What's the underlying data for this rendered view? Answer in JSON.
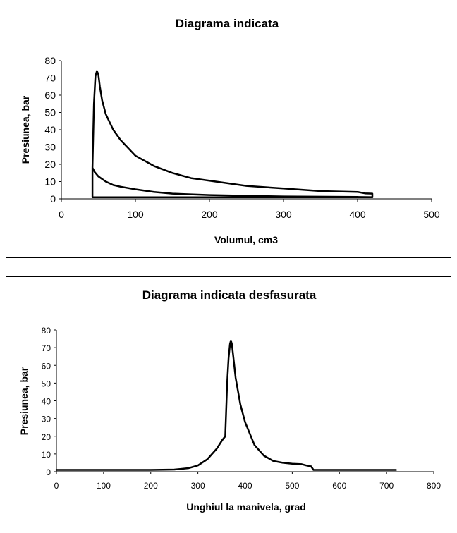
{
  "chart_data": [
    {
      "type": "line",
      "title": "Diagrama indicata",
      "xlabel": "Volumul, cm3",
      "ylabel": "Presiunea, bar",
      "xlim": [
        0,
        500
      ],
      "ylim": [
        0,
        80
      ],
      "xticks": [
        "0",
        "100",
        "200",
        "300",
        "400",
        "500"
      ],
      "yticks": [
        "0",
        "10",
        "20",
        "30",
        "40",
        "50",
        "60",
        "70",
        "80"
      ],
      "grid": false,
      "legend": "none",
      "series": [
        {
          "x": [
            42,
            42,
            44,
            46,
            48,
            50,
            52,
            55,
            60,
            70,
            80,
            100,
            125,
            150,
            175,
            200,
            250,
            300,
            350,
            400,
            410,
            420,
            420,
            300,
            200,
            100,
            42,
            42,
            45,
            50,
            60,
            70,
            80,
            100,
            125,
            150,
            200,
            250,
            300,
            400,
            420
          ],
          "y": [
            0.9,
            18,
            55,
            71,
            74,
            72,
            65,
            57,
            49,
            40,
            34,
            25,
            19,
            15,
            12,
            10.5,
            7.5,
            6,
            4.5,
            4,
            3.2,
            3,
            0.9,
            0.9,
            0.9,
            0.9,
            0.9,
            18,
            15.5,
            13,
            10,
            8,
            7,
            5.5,
            4,
            3,
            2.2,
            1.8,
            1.4,
            1.1,
            1
          ]
        }
      ]
    },
    {
      "type": "line",
      "title": "Diagrama indicata desfasurata",
      "xlabel": "Unghiul la manivela, grad",
      "ylabel": "Presiunea, bar",
      "xlim": [
        0,
        800
      ],
      "ylim": [
        0,
        80
      ],
      "xticks": [
        "0",
        "100",
        "200",
        "300",
        "400",
        "500",
        "600",
        "700",
        "800"
      ],
      "yticks": [
        "0",
        "10",
        "20",
        "30",
        "40",
        "50",
        "60",
        "70",
        "80"
      ],
      "grid": false,
      "legend": "none",
      "series": [
        {
          "x": [
            0,
            100,
            200,
            250,
            280,
            300,
            320,
            340,
            352,
            358,
            362,
            365,
            368,
            370,
            372,
            375,
            380,
            390,
            400,
            420,
            440,
            460,
            480,
            500,
            520,
            530,
            540,
            545,
            550,
            600,
            650,
            720
          ],
          "y": [
            1,
            1,
            1,
            1.2,
            2,
            3.5,
            7,
            13,
            18,
            20,
            50,
            64,
            72,
            74,
            72,
            65,
            53,
            38,
            28,
            15,
            9,
            6,
            5,
            4.5,
            4.2,
            3.5,
            3,
            1,
            1,
            1,
            1,
            1
          ]
        }
      ]
    }
  ]
}
